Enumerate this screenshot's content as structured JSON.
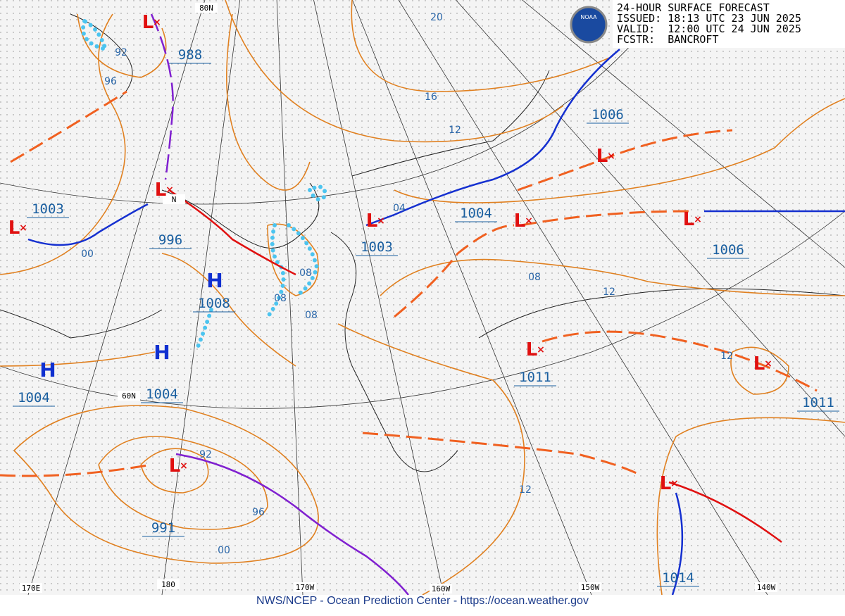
{
  "header": {
    "title": "24-HOUR SURFACE FORECAST",
    "issued": "ISSUED: 18:13 UTC 23 JUN 2025",
    "valid": "VALID:  12:00 UTC 24 JUN 2025",
    "forecaster": "FCSTR:  BANCROFT"
  },
  "logo": "NOAA",
  "footer": "NWS/NCEP - Ocean Prediction Center - https://ocean.weather.gov",
  "grid_labels": [
    "80N",
    "N",
    "60N",
    "170E",
    "180",
    "170W",
    "160W",
    "150W",
    "140W"
  ],
  "centers": [
    {
      "symbol": "L",
      "pressure": "988"
    },
    {
      "symbol": "L",
      "pressure": "1003"
    },
    {
      "symbol": "L",
      "pressure": "996"
    },
    {
      "symbol": "H",
      "pressure": "1008"
    },
    {
      "symbol": "H",
      "pressure": "1004"
    },
    {
      "symbol": "H",
      "pressure": "1004"
    },
    {
      "symbol": "L",
      "pressure": "991"
    },
    {
      "symbol": "L",
      "pressure": "1003"
    },
    {
      "symbol": "L",
      "pressure": "1004"
    },
    {
      "symbol": "L",
      "pressure": "1006"
    },
    {
      "symbol": "L",
      "pressure": "1006"
    },
    {
      "symbol": "L",
      "pressure": "1011"
    },
    {
      "symbol": "L",
      "pressure": "1011"
    },
    {
      "symbol": "L",
      "pressure": "1014"
    }
  ],
  "isobar_labels": [
    "20",
    "16",
    "12",
    "92",
    "96",
    "04",
    "08",
    "08",
    "08",
    "00",
    "08",
    "12",
    "12",
    "92",
    "96",
    "00",
    "12"
  ]
}
